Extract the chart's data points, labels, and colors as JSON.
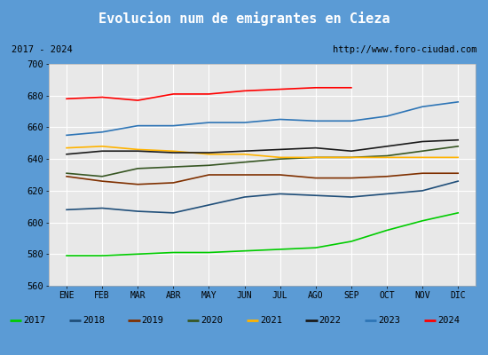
{
  "title": "Evolucion num de emigrantes en Cieza",
  "title_color": "#ffffff",
  "title_bg_color": "#5b9bd5",
  "subtitle_left": "2017 - 2024",
  "subtitle_right": "http://www.foro-ciudad.com",
  "xlabel_ticks": [
    "ENE",
    "FEB",
    "MAR",
    "ABR",
    "MAY",
    "JUN",
    "JUL",
    "AGO",
    "SEP",
    "OCT",
    "NOV",
    "DIC"
  ],
  "ylim": [
    560,
    700
  ],
  "yticks": [
    560,
    580,
    600,
    620,
    640,
    660,
    680,
    700
  ],
  "series": {
    "2017": {
      "color": "#00cc00",
      "data": [
        579,
        579,
        580,
        581,
        581,
        582,
        583,
        584,
        588,
        595,
        601,
        606
      ]
    },
    "2018": {
      "color": "#1f4e79",
      "data": [
        608,
        609,
        607,
        606,
        611,
        616,
        618,
        617,
        616,
        618,
        620,
        626
      ]
    },
    "2019": {
      "color": "#7f3000",
      "data": [
        629,
        626,
        624,
        625,
        630,
        630,
        630,
        628,
        628,
        629,
        631,
        631
      ]
    },
    "2020": {
      "color": "#375623",
      "data": [
        631,
        629,
        634,
        635,
        636,
        638,
        640,
        641,
        641,
        642,
        645,
        648
      ]
    },
    "2021": {
      "color": "#ffb300",
      "data": [
        647,
        648,
        646,
        645,
        643,
        643,
        641,
        641,
        641,
        641,
        641,
        641
      ]
    },
    "2022": {
      "color": "#1a1a1a",
      "data": [
        643,
        645,
        645,
        644,
        644,
        645,
        646,
        647,
        645,
        648,
        651,
        652
      ]
    },
    "2023": {
      "color": "#2e75b6",
      "data": [
        655,
        657,
        661,
        661,
        663,
        663,
        665,
        664,
        664,
        667,
        673,
        676
      ]
    },
    "2024": {
      "color": "#ff0000",
      "data": [
        678,
        679,
        677,
        681,
        681,
        683,
        684,
        685,
        685,
        null,
        null,
        null
      ]
    }
  },
  "plot_bg_color": "#e8e8e8",
  "grid_color": "#ffffff",
  "outer_bg_color": "#5b9bd5",
  "legend_years": [
    "2017",
    "2018",
    "2019",
    "2020",
    "2021",
    "2022",
    "2023",
    "2024"
  ]
}
